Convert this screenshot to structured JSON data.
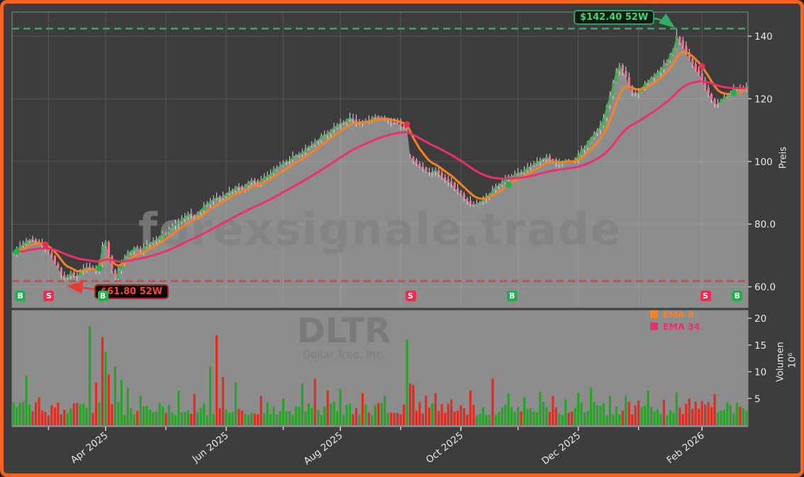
{
  "chart_data": {
    "type": "candlestick+volume",
    "watermarks": {
      "site": "forexsignale.trade",
      "symbol": "DLTR",
      "company": "Dollar Tree, Inc."
    },
    "price_axis": {
      "label": "Preis",
      "ticks": [
        {
          "value": 60,
          "label": "60.0"
        },
        {
          "value": 80,
          "label": "80.0"
        },
        {
          "value": 100,
          "label": "100"
        },
        {
          "value": 120,
          "label": "120"
        },
        {
          "value": 140,
          "label": "140"
        }
      ]
    },
    "volume_axis": {
      "label": "Volumen",
      "exponent_label": "10⁶",
      "ticks": [
        {
          "value": 5,
          "label": "5"
        },
        {
          "value": 10,
          "label": "10"
        },
        {
          "value": 15,
          "label": "15"
        },
        {
          "value": 20,
          "label": "20"
        }
      ]
    },
    "x_axis": {
      "major_ticks": [
        {
          "i": 29,
          "label": "Apr 2025"
        },
        {
          "i": 67,
          "label": "Jun 2025"
        },
        {
          "i": 103,
          "label": "Aug 2025"
        },
        {
          "i": 141,
          "label": "Oct 2025"
        },
        {
          "i": 178,
          "label": "Dec 2025"
        },
        {
          "i": 217,
          "label": "Feb 2026"
        }
      ],
      "minor_tick_indices": [
        11,
        48,
        85,
        122,
        159,
        197
      ]
    },
    "levels": {
      "high_52w": {
        "value": 142.4,
        "label": "$142.40 52W"
      },
      "low_52w": {
        "value": 61.8,
        "label": "$61.80 52W"
      }
    },
    "emas": [
      {
        "name": "EMA 8",
        "period": 8,
        "color": "#f58220"
      },
      {
        "name": "EMA 34",
        "period": 34,
        "color": "#ed2f6d"
      }
    ],
    "signals": [
      {
        "i": 1,
        "type": "B"
      },
      {
        "i": 10,
        "type": "S"
      },
      {
        "i": 27,
        "type": "B"
      },
      {
        "i": 124,
        "type": "S"
      },
      {
        "i": 156,
        "type": "B"
      },
      {
        "i": 217,
        "type": "S"
      },
      {
        "i": 227,
        "type": "B"
      }
    ],
    "n_candles": 232,
    "close_anchors": [
      [
        0,
        71.0
      ],
      [
        2,
        73.0
      ],
      [
        5,
        75.0
      ],
      [
        7,
        74.5
      ],
      [
        10,
        72.5
      ],
      [
        12,
        69.5
      ],
      [
        14,
        66.0
      ],
      [
        16,
        62.8
      ],
      [
        18,
        64.5
      ],
      [
        20,
        63.2
      ],
      [
        22,
        65.8
      ],
      [
        24,
        66.2
      ],
      [
        26,
        65.0
      ],
      [
        27,
        67.5
      ],
      [
        28,
        73.0
      ],
      [
        29,
        74.5
      ],
      [
        30,
        70.0
      ],
      [
        31,
        65.5
      ],
      [
        32,
        62.8
      ],
      [
        34,
        68.0
      ],
      [
        36,
        71.0
      ],
      [
        38,
        72.5
      ],
      [
        40,
        71.5
      ],
      [
        43,
        74.0
      ],
      [
        46,
        76.0
      ],
      [
        49,
        78.5
      ],
      [
        52,
        80.5
      ],
      [
        55,
        83.5
      ],
      [
        57,
        82.5
      ],
      [
        60,
        86.0
      ],
      [
        63,
        88.0
      ],
      [
        66,
        89.0
      ],
      [
        68,
        90.5
      ],
      [
        70,
        92.0
      ],
      [
        72,
        91.5
      ],
      [
        75,
        94.0
      ],
      [
        77,
        93.0
      ],
      [
        80,
        95.5
      ],
      [
        83,
        98.0
      ],
      [
        86,
        100.0
      ],
      [
        89,
        102.0
      ],
      [
        92,
        104.0
      ],
      [
        95,
        106.5
      ],
      [
        98,
        108.5
      ],
      [
        101,
        111.0
      ],
      [
        104,
        112.5
      ],
      [
        106,
        114.0
      ],
      [
        108,
        112.5
      ],
      [
        111,
        113.0
      ],
      [
        114,
        114.5
      ],
      [
        117,
        113.5
      ],
      [
        120,
        112.5
      ],
      [
        123,
        111.0
      ],
      [
        124,
        110.5
      ],
      [
        125,
        101.5
      ],
      [
        127,
        99.5
      ],
      [
        129,
        98.0
      ],
      [
        131,
        96.5
      ],
      [
        133,
        97.5
      ],
      [
        135,
        95.0
      ],
      [
        137,
        93.5
      ],
      [
        139,
        91.5
      ],
      [
        141,
        89.5
      ],
      [
        143,
        87.5
      ],
      [
        145,
        86.0
      ],
      [
        147,
        87.0
      ],
      [
        149,
        89.0
      ],
      [
        151,
        91.0
      ],
      [
        153,
        92.5
      ],
      [
        155,
        94.5
      ],
      [
        158,
        96.0
      ],
      [
        160,
        96.5
      ],
      [
        163,
        98.5
      ],
      [
        166,
        100.5
      ],
      [
        168,
        101.5
      ],
      [
        170,
        100.5
      ],
      [
        172,
        99.5
      ],
      [
        174,
        100.5
      ],
      [
        176,
        99.8
      ],
      [
        178,
        102.0
      ],
      [
        180,
        104.5
      ],
      [
        182,
        107.5
      ],
      [
        184,
        110.0
      ],
      [
        186,
        114.0
      ],
      [
        188,
        121.0
      ],
      [
        190,
        129.0
      ],
      [
        191,
        130.5
      ],
      [
        193,
        127.0
      ],
      [
        195,
        122.0
      ],
      [
        196,
        121.8
      ],
      [
        198,
        123.5
      ],
      [
        200,
        125.5
      ],
      [
        202,
        127.5
      ],
      [
        204,
        129.5
      ],
      [
        206,
        132.0
      ],
      [
        208,
        136.0
      ],
      [
        209,
        140.0
      ],
      [
        210,
        138.5
      ],
      [
        212,
        134.5
      ],
      [
        214,
        131.0
      ],
      [
        216,
        128.0
      ],
      [
        217,
        126.0
      ],
      [
        218,
        123.5
      ],
      [
        220,
        120.0
      ],
      [
        221,
        118.3
      ],
      [
        223,
        119.5
      ],
      [
        225,
        120.8
      ],
      [
        227,
        123.2
      ],
      [
        229,
        122.8
      ],
      [
        231,
        124.0
      ]
    ],
    "special_candles": [
      {
        "i": 16,
        "low": 61.8
      },
      {
        "i": 32,
        "low": 62.0
      },
      {
        "i": 125,
        "open": 101.8
      },
      {
        "i": 191,
        "high": 131.5
      },
      {
        "i": 209,
        "high": 142.4
      },
      {
        "i": 221,
        "low": 117.2
      }
    ],
    "volume_base_range": [
      1.8,
      4.4
    ],
    "volume_spikes": [
      [
        4,
        9.3,
        "up"
      ],
      [
        8,
        5.2,
        "down"
      ],
      [
        24,
        18.5,
        "up"
      ],
      [
        26,
        8.0,
        "down"
      ],
      [
        28,
        16.5,
        "down"
      ],
      [
        29,
        13.7,
        "up"
      ],
      [
        30,
        9.5,
        "down"
      ],
      [
        32,
        11.0,
        "up"
      ],
      [
        34,
        8.5,
        "up"
      ],
      [
        36,
        7.0,
        "up"
      ],
      [
        40,
        5.5,
        "up"
      ],
      [
        52,
        6.5,
        "up"
      ],
      [
        57,
        5.8,
        "down"
      ],
      [
        62,
        11.0,
        "up"
      ],
      [
        64,
        16.8,
        "down"
      ],
      [
        66,
        9.0,
        "down"
      ],
      [
        70,
        8.0,
        "up"
      ],
      [
        78,
        5.5,
        "down"
      ],
      [
        85,
        5.0,
        "up"
      ],
      [
        91,
        7.8,
        "up"
      ],
      [
        95,
        8.7,
        "down"
      ],
      [
        99,
        6.5,
        "down"
      ],
      [
        103,
        6.8,
        "up"
      ],
      [
        110,
        6.0,
        "down"
      ],
      [
        117,
        5.5,
        "up"
      ],
      [
        124,
        16.0,
        "up"
      ],
      [
        125,
        7.8,
        "down"
      ],
      [
        126,
        7.5,
        "down"
      ],
      [
        130,
        5.5,
        "down"
      ],
      [
        133,
        6.0,
        "down"
      ],
      [
        138,
        4.8,
        "down"
      ],
      [
        144,
        6.5,
        "down"
      ],
      [
        151,
        8.7,
        "down"
      ],
      [
        156,
        6.0,
        "up"
      ],
      [
        161,
        5.2,
        "up"
      ],
      [
        166,
        6.2,
        "up"
      ],
      [
        170,
        5.5,
        "down"
      ],
      [
        174,
        4.8,
        "up"
      ],
      [
        178,
        6.0,
        "up"
      ],
      [
        182,
        7.0,
        "up"
      ],
      [
        188,
        5.5,
        "up"
      ],
      [
        193,
        5.5,
        "up"
      ],
      [
        197,
        4.6,
        "down"
      ],
      [
        200,
        6.5,
        "up"
      ],
      [
        205,
        4.8,
        "down"
      ],
      [
        209,
        6.2,
        "up"
      ],
      [
        213,
        5.0,
        "down"
      ],
      [
        217,
        4.5,
        "down"
      ],
      [
        221,
        5.8,
        "down"
      ],
      [
        225,
        4.3,
        "up"
      ],
      [
        228,
        4.2,
        "up"
      ]
    ],
    "colors": {
      "background": "#3d3d3d",
      "frame": "#f4641e",
      "candle_up": "#3bb54a",
      "candle_down": "#f4708e",
      "wick": "#dcdcdc",
      "area_fill": "rgba(214,214,214,0.52)",
      "volume_up": "#27a327",
      "volume_down": "#e32b20",
      "grid": "#565656",
      "spine": "#8a8a8a",
      "axis_text": "#e9e9e9",
      "panel_gray": "#8d8d8d",
      "high_line": "#3aa864",
      "low_line": "#e63c38",
      "badge_buy": "#21b14c",
      "badge_sell": "#ef2c50"
    }
  }
}
